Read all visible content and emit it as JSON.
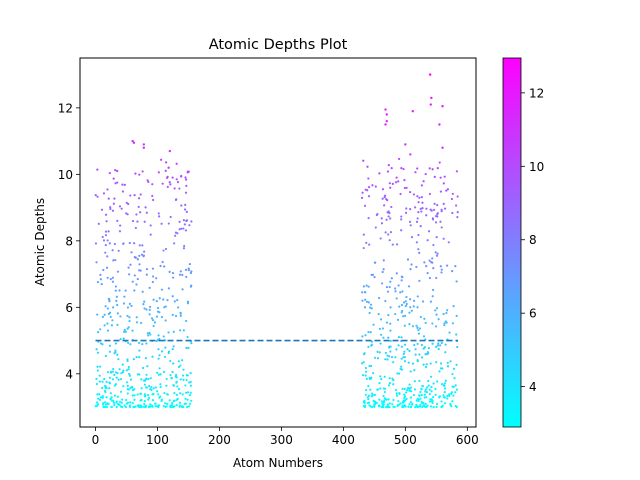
{
  "chart_data": {
    "type": "scatter",
    "title": "Atomic Depths Plot",
    "xlabel": "Atom Numbers",
    "ylabel": "Atomic Depths",
    "xlim": [
      -25,
      614
    ],
    "ylim": [
      2.4,
      13.5
    ],
    "xticks": [
      0,
      100,
      200,
      300,
      400,
      500,
      600
    ],
    "yticks": [
      4,
      6,
      8,
      10,
      12
    ],
    "grid": false,
    "clusters": [
      {
        "x_range": [
          0,
          155
        ],
        "count": 620
      },
      {
        "x_range": [
          430,
          585
        ],
        "count": 620
      }
    ],
    "depth_range": [
      2.9,
      13.0
    ],
    "reference_line": {
      "y": 5.0,
      "x_range": [
        0,
        585
      ],
      "style": "dashed",
      "color": "#1f77b4"
    },
    "colorbar": {
      "colormap": "cool",
      "range": [
        2.9,
        12.95
      ],
      "ticks": [
        4,
        6,
        8,
        10,
        12
      ],
      "low_color": "#00ffff",
      "high_color": "#ff00ff"
    },
    "highlight_points": [
      {
        "x": 540,
        "y": 13.0
      },
      {
        "x": 468,
        "y": 11.95
      },
      {
        "x": 470,
        "y": 11.8
      },
      {
        "x": 470,
        "y": 11.6
      },
      {
        "x": 468,
        "y": 11.5
      },
      {
        "x": 512,
        "y": 11.9
      },
      {
        "x": 542,
        "y": 12.3
      },
      {
        "x": 541,
        "y": 12.1
      },
      {
        "x": 560,
        "y": 12.05
      },
      {
        "x": 555,
        "y": 11.5
      },
      {
        "x": 60,
        "y": 11.0
      },
      {
        "x": 62,
        "y": 10.95
      },
      {
        "x": 78,
        "y": 10.9
      },
      {
        "x": 78,
        "y": 10.8
      },
      {
        "x": 120,
        "y": 10.7
      },
      {
        "x": 35,
        "y": 10.1
      },
      {
        "x": 118,
        "y": 10.2
      },
      {
        "x": 500,
        "y": 10.9
      },
      {
        "x": 508,
        "y": 10.6
      },
      {
        "x": 560,
        "y": 10.8
      }
    ]
  }
}
